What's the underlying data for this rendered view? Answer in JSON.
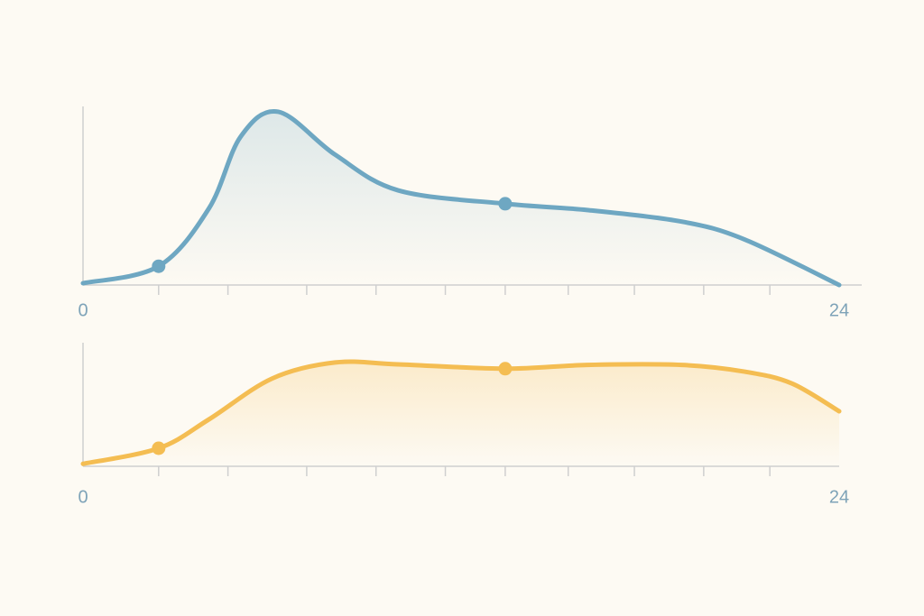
{
  "chart_data": [
    {
      "type": "area",
      "color": "#6ea7c2",
      "x": [
        0,
        2.4,
        4,
        5,
        6.2,
        8,
        10,
        13.4,
        16,
        19,
        21,
        24
      ],
      "values": [
        1,
        10.5,
        43,
        83,
        97,
        73,
        53,
        45.5,
        42,
        35.5,
        25.5,
        0
      ],
      "points": {
        "x": [
          2.4,
          13.4
        ],
        "values": [
          10.5,
          45.5
        ]
      },
      "xlim": [
        0,
        24
      ],
      "ylim": [
        0,
        100
      ],
      "xticks": [
        0,
        24
      ],
      "minor_xticks": [
        2.4,
        4.6,
        7.1,
        9.3,
        11.5,
        13.4,
        15.4,
        17.5,
        19.7,
        21.8
      ]
    },
    {
      "type": "area",
      "color": "#f4bd52",
      "x": [
        0,
        2.4,
        4,
        6,
        8,
        10,
        13.4,
        16,
        19,
        21,
        22.5,
        24
      ],
      "values": [
        2,
        14.6,
        38,
        71,
        84,
        82.5,
        79,
        82,
        82,
        76.6,
        67,
        44.5
      ],
      "points": {
        "x": [
          2.4,
          13.4
        ],
        "values": [
          14.6,
          79
        ]
      },
      "xlim": [
        0,
        24
      ],
      "ylim": [
        0,
        100
      ],
      "xticks": [
        0,
        24
      ],
      "minor_xticks": [
        2.4,
        4.6,
        7.1,
        9.3,
        11.5,
        13.4,
        15.4,
        17.5,
        19.7,
        21.8
      ]
    }
  ]
}
